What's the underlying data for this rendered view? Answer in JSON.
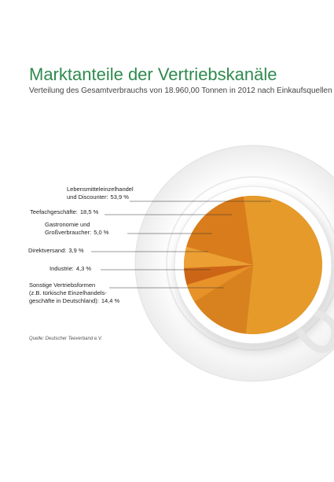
{
  "chart_data": {
    "type": "pie",
    "title": "Marktanteile der Vertriebskanäle",
    "subtitle": "Verteilung des Gesamtverbrauchs von 18.960,00 Tonnen in 2012 nach Einkaufsquellen",
    "categories": [
      "Lebensmitteleinzelhandel\nund Discounter:",
      "Teefachgeschäfte:",
      "Gastronomie und\nGroßverbraucher:",
      "Direktversand:",
      "Industrie:",
      "Sonstige Vertriebsformen\n(z.B. türkische Einzelhandels-\ngeschäfte in Deutschland):"
    ],
    "values": [
      53.9,
      18.5,
      5.0,
      3.9,
      4.3,
      14.4
    ],
    "value_labels": [
      "53,9 %",
      "18,5 %",
      "5,0 %",
      "3,9 %",
      "4,3 %",
      "14,4 %"
    ],
    "colors": [
      "#e59a2a",
      "#d97c1c",
      "#ec9f33",
      "#cc6616",
      "#e8922a",
      "#d8821f"
    ],
    "source": "Quelle: Deutscher Teeverband e.V."
  }
}
